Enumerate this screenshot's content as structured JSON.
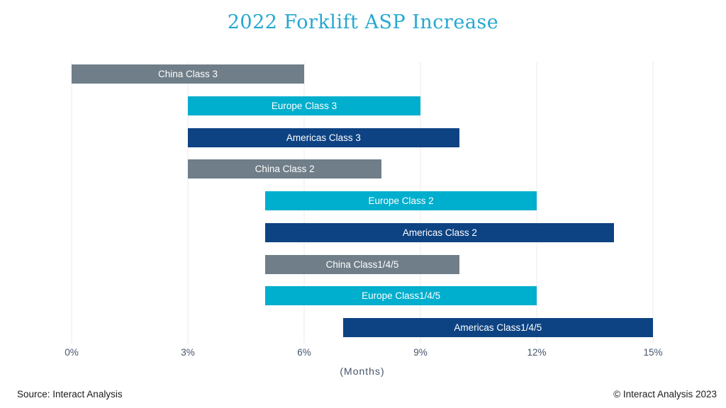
{
  "title": "2022 Forklift ASP Increase",
  "footer": {
    "source": "Source: Interact Analysis",
    "copyright": "© Interact Analysis 2023"
  },
  "colors": {
    "china_gray": "#6f7e88",
    "europe_cyan": "#00aecd",
    "americas_blue": "#0d4383",
    "title_cyan": "#25a8d1",
    "axis_text": "#44546a",
    "gridline": "#ebebeb",
    "bar_label_text": "#ffffff"
  },
  "chart_data": {
    "type": "bar",
    "subtype": "horizontal-range",
    "title": "2022 Forklift ASP Increase",
    "xlabel": "(Months)",
    "ylabel": "",
    "xlim": [
      0,
      15
    ],
    "x_ticks": [
      "0%",
      "3%",
      "6%",
      "9%",
      "12%",
      "15%"
    ],
    "x_tick_values": [
      0,
      3,
      6,
      9,
      12,
      15
    ],
    "grid": true,
    "legend": "none",
    "bars": [
      {
        "label": "China Class 3",
        "region": "China",
        "start": 0,
        "end": 6,
        "color": "#6f7e88"
      },
      {
        "label": "Europe Class 3",
        "region": "Europe",
        "start": 3,
        "end": 9,
        "color": "#00aecd"
      },
      {
        "label": "Americas Class 3",
        "region": "Americas",
        "start": 3,
        "end": 10,
        "color": "#0d4383"
      },
      {
        "label": "China Class 2",
        "region": "China",
        "start": 3,
        "end": 8,
        "color": "#6f7e88"
      },
      {
        "label": "Europe Class 2",
        "region": "Europe",
        "start": 5,
        "end": 12,
        "color": "#00aecd"
      },
      {
        "label": "Americas Class 2",
        "region": "Americas",
        "start": 5,
        "end": 14,
        "color": "#0d4383"
      },
      {
        "label": "China Class1/4/5",
        "region": "China",
        "start": 5,
        "end": 10,
        "color": "#6f7e88"
      },
      {
        "label": "Europe Class1/4/5",
        "region": "Europe",
        "start": 5,
        "end": 12,
        "color": "#00aecd"
      },
      {
        "label": "Americas Class1/4/5",
        "region": "Americas",
        "start": 7,
        "end": 15,
        "color": "#0d4383"
      }
    ]
  }
}
